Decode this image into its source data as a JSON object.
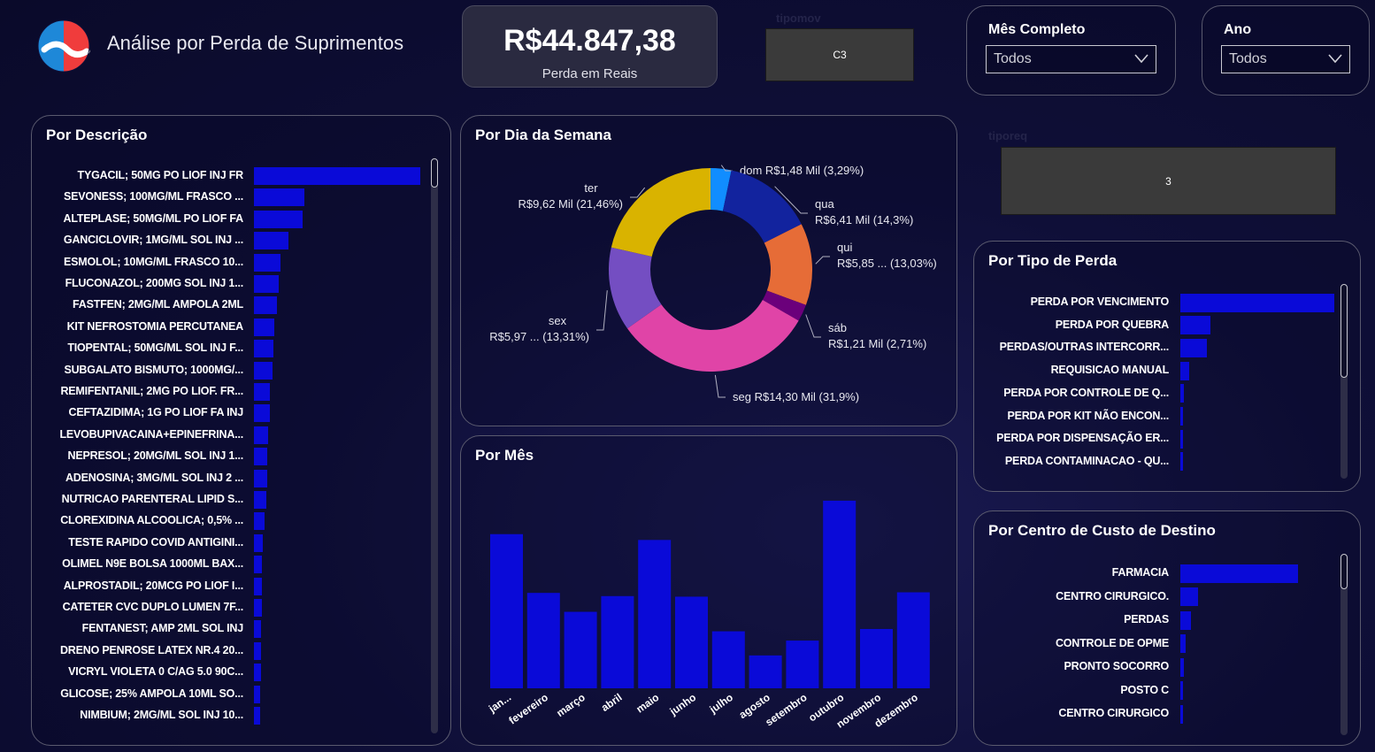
{
  "header": {
    "title": "Análise por Perda de Suprimentos",
    "logo_icon": "pharmacy-logo-icon"
  },
  "kpi": {
    "value": "R$44.847,38",
    "label": "Perda em Reais"
  },
  "tipomov": {
    "label": "tipomov",
    "value": "C3"
  },
  "tiporeq": {
    "label": "tiporeq",
    "value": "3"
  },
  "filters": {
    "mes": {
      "label": "Mês Completo",
      "value": "Todos"
    },
    "ano": {
      "label": "Ano",
      "value": "Todos"
    }
  },
  "colors": {
    "bar": "#0a0ad8",
    "background": "#0f0f38"
  },
  "chart_data": [
    {
      "id": "por-descricao",
      "type": "bar",
      "orientation": "horizontal",
      "title": "Por Descrição",
      "categories": [
        "TYGACIL; 50MG PO LIOF INJ FR",
        "SEVONESS; 100MG/ML FRASCO ...",
        "ALTEPLASE; 50MG/ML PO LIOF FA",
        "GANCICLOVIR; 1MG/ML SOL INJ ...",
        "ESMOLOL; 10MG/ML FRASCO 10...",
        "FLUCONAZOL; 200MG SOL INJ 1...",
        "FASTFEN; 2MG/ML AMPOLA 2ML",
        "KIT NEFROSTOMIA PERCUTANEA",
        "TIOPENTAL; 50MG/ML SOL INJ F...",
        "SUBGALATO BISMUTO; 1000MG/...",
        "REMIFENTANIL; 2MG PO LIOF. FR...",
        "CEFTAZIDIMA; 1G PO LIOF FA INJ",
        "LEVOBUPIVACAINA+EPINEFRINA...",
        "NEPRESOL; 20MG/ML SOL INJ 1...",
        "ADENOSINA; 3MG/ML SOL INJ 2 ...",
        "NUTRICAO PARENTERAL LIPID S...",
        "CLOREXIDINA ALCOOLICA; 0,5% ...",
        "TESTE RAPIDO COVID ANTIGINI...",
        "OLIMEL N9E BOLSA 1000ML BAX...",
        "ALPROSTADIL; 20MCG PO LIOF I...",
        "CATETER CVC DUPLO LUMEN 7F...",
        "FENTANEST; AMP 2ML SOL INJ",
        "DRENO PENROSE LATEX NR.4 20...",
        "VICRYL VIOLETA 0 C/AG 5.0 90C...",
        "GLICOSE; 25% AMPOLA 10ML SO...",
        "NIMBIUM; 2MG/ML SOL INJ 10..."
      ],
      "values": [
        100,
        30.5,
        29.5,
        21,
        16,
        14.8,
        14,
        12,
        11.5,
        11,
        9.8,
        9.8,
        8.5,
        8,
        7.8,
        7.2,
        6.6,
        5.5,
        5,
        4.8,
        4.6,
        4.4,
        4.2,
        4,
        3.8,
        3.6
      ]
    },
    {
      "id": "por-dia-semana",
      "type": "pie",
      "donut": true,
      "title": "Por Dia da Semana",
      "slices": [
        {
          "name": "dom",
          "label": "R$1,48 Mil (3,29%)",
          "value": 3.29,
          "color": "#118DFF"
        },
        {
          "name": "qua",
          "label": "R$6,41 Mil (14,3%)",
          "value": 14.3,
          "color": "#12239E"
        },
        {
          "name": "qui",
          "label": "R$5,85 ... (13,03%)",
          "value": 13.03,
          "color": "#E66C37"
        },
        {
          "name": "sáb",
          "label": "R$1,21 Mil (2,71%)",
          "value": 2.71,
          "color": "#6B007B"
        },
        {
          "name": "seg",
          "label": "R$14,30 Mil (31,9%)",
          "value": 31.9,
          "color": "#E044A7"
        },
        {
          "name": "sex",
          "label": "R$5,97 ... (13,31%)",
          "value": 13.31,
          "color": "#744EC2"
        },
        {
          "name": "ter",
          "label": "R$9,62 Mil (21,46%)",
          "value": 21.46,
          "color": "#D9B300"
        }
      ]
    },
    {
      "id": "por-mes",
      "type": "bar",
      "title": "Por Mês",
      "categories": [
        "jan...",
        "fevereiro",
        "março",
        "abril",
        "maio",
        "junho",
        "julho",
        "agosto",
        "setembro",
        "outubro",
        "novembro",
        "dezembro"
      ],
      "values": [
        5.3,
        3.28,
        2.63,
        3.17,
        5.1,
        3.15,
        1.96,
        1.13,
        1.64,
        6.45,
        2.04,
        3.3
      ],
      "ylim": [
        0,
        6.6
      ]
    },
    {
      "id": "por-tipo-perda",
      "type": "bar",
      "orientation": "horizontal",
      "title": "Por Tipo de Perda",
      "categories": [
        "PERDA POR VENCIMENTO",
        "PERDA POR QUEBRA",
        "PERDAS/OUTRAS INTERCORR...",
        "REQUISICAO MANUAL",
        "PERDA POR CONTROLE DE Q...",
        "PERDA POR KIT NÃO ENCON...",
        "PERDA POR DISPENSAÇÃO ER...",
        "PERDA CONTAMINACAO - QU..."
      ],
      "values": [
        100,
        19.5,
        17.5,
        5.5,
        2.5,
        1.2,
        0.9,
        0.6
      ]
    },
    {
      "id": "por-centro-custo",
      "type": "bar",
      "orientation": "horizontal",
      "title": "Por Centro de Custo de Destino",
      "categories": [
        "FARMACIA",
        "CENTRO CIRURGICO.",
        "PERDAS",
        "CONTROLE DE OPME",
        "PRONTO SOCORRO",
        "POSTO C",
        "CENTRO CIRURGICO"
      ],
      "values": [
        100,
        15,
        9,
        4.5,
        3,
        2.5,
        1.5
      ]
    }
  ]
}
